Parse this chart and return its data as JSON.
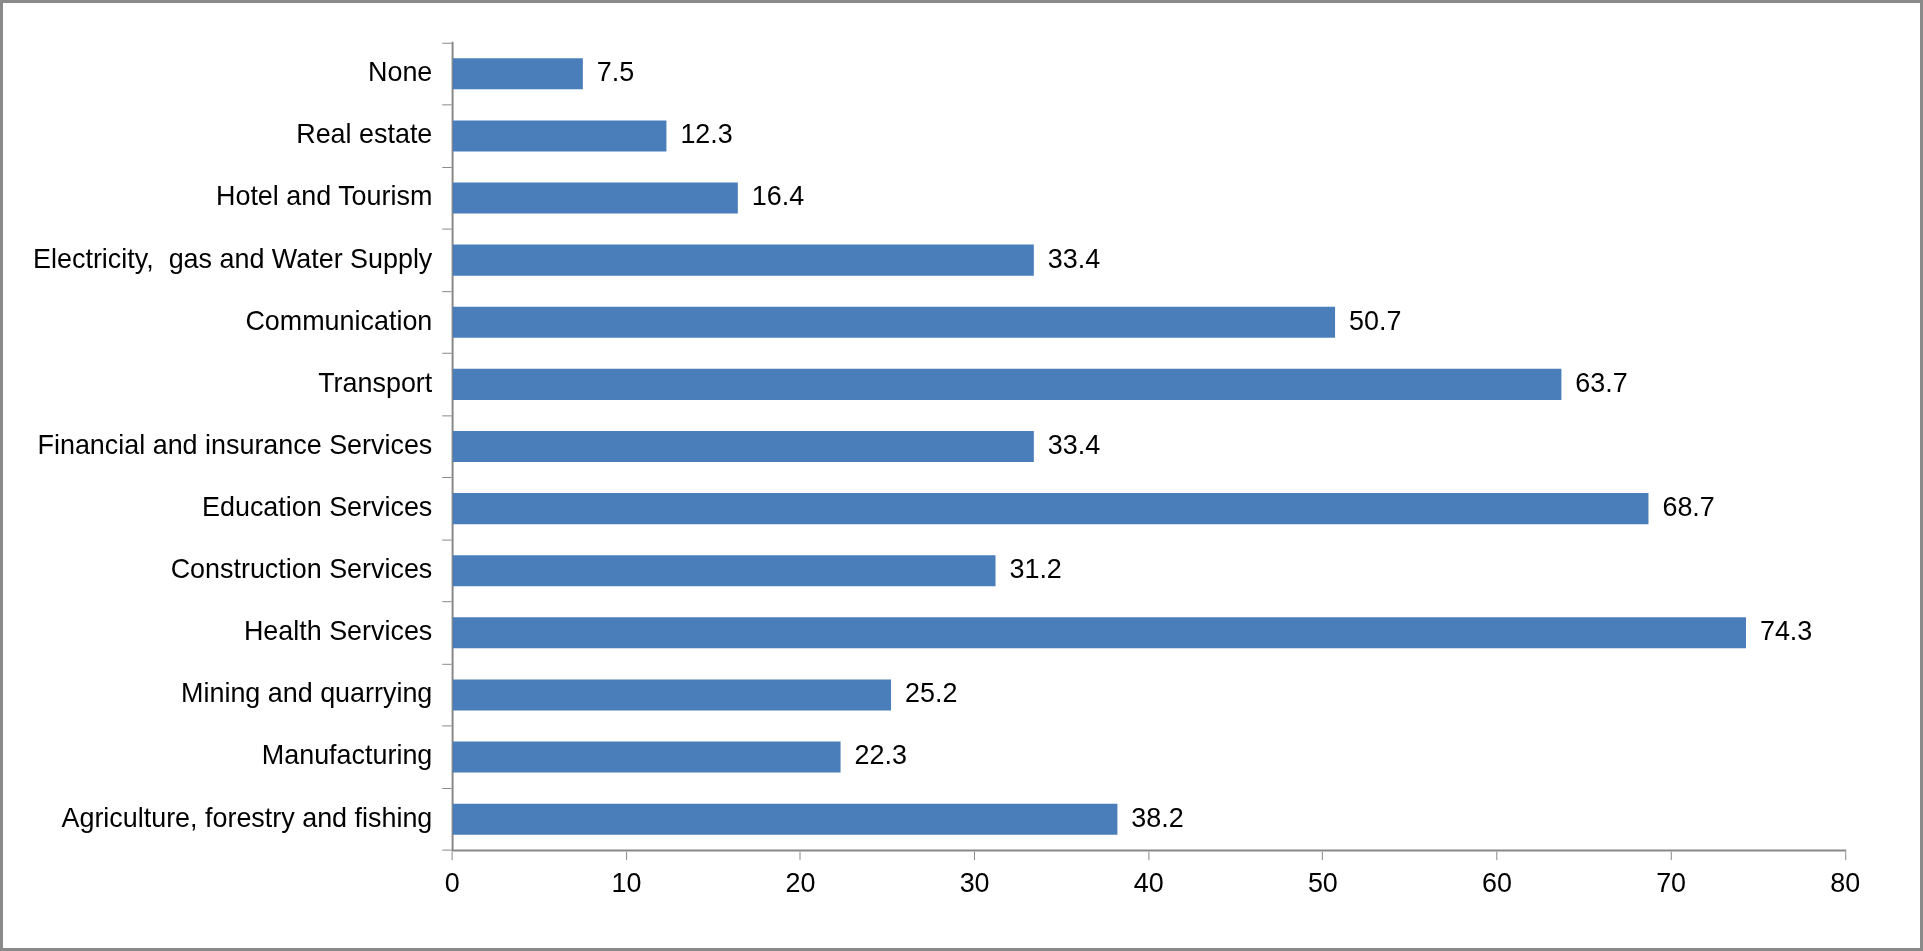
{
  "chart_data": {
    "type": "bar",
    "orientation": "horizontal",
    "categories": [
      "None",
      "Real estate",
      "Hotel and Tourism",
      "Electricity,  gas and Water Supply",
      "Communication",
      "Transport",
      "Financial and insurance Services",
      "Education Services",
      "Construction Services",
      "Health Services",
      "Mining and quarrying",
      "Manufacturing",
      "Agriculture, forestry and fishing"
    ],
    "values": [
      7.5,
      12.3,
      16.4,
      33.4,
      50.7,
      63.7,
      33.4,
      68.7,
      31.2,
      74.3,
      25.2,
      22.3,
      38.2
    ],
    "color": "#4a7ebb",
    "xlim": [
      0,
      80
    ],
    "xticks": [
      0,
      10,
      20,
      30,
      40,
      50,
      60,
      70,
      80
    ],
    "data_labels": true
  }
}
